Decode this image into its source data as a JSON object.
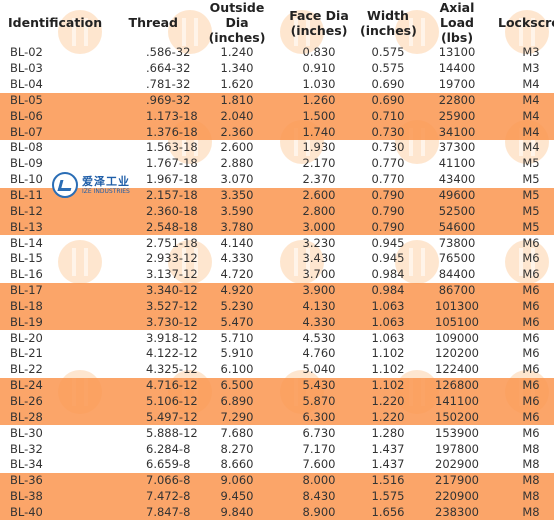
{
  "headers": [
    [
      "Identification"
    ],
    [
      "Thread"
    ],
    [
      "Outside Dia",
      "(inches)"
    ],
    [
      "Face Dia",
      "(inches)"
    ],
    [
      "Width",
      "(inches)"
    ],
    [
      "Axial Load",
      "(lbs)"
    ],
    [
      "Lockscrew"
    ]
  ],
  "colors": {
    "highlight": "#f99a53",
    "watermark": "#fcc48c",
    "logo": "#1f5ea8"
  },
  "logo": {
    "icon": "ize-logo-icon",
    "text_cn": "爱泽工业",
    "text_en": "IZE INDUSTRIES"
  },
  "rows": [
    {
      "id": "BL-02",
      "thread": ".586-32",
      "od": "1.240",
      "fd": "0.830",
      "w": "0.575",
      "load": "13100",
      "ls": "M3",
      "hl": false
    },
    {
      "id": "BL-03",
      "thread": ".664-32",
      "od": "1.340",
      "fd": "0.910",
      "w": "0.575",
      "load": "14400",
      "ls": "M3",
      "hl": false
    },
    {
      "id": "BL-04",
      "thread": ".781-32",
      "od": "1.620",
      "fd": "1.030",
      "w": "0.690",
      "load": "19700",
      "ls": "M4",
      "hl": false
    },
    {
      "id": "BL-05",
      "thread": ".969-32",
      "od": "1.810",
      "fd": "1.260",
      "w": "0.690",
      "load": "22800",
      "ls": "M4",
      "hl": true
    },
    {
      "id": "BL-06",
      "thread": "1.173-18",
      "od": "2.040",
      "fd": "1.500",
      "w": "0.710",
      "load": "25900",
      "ls": "M4",
      "hl": true
    },
    {
      "id": "BL-07",
      "thread": "1.376-18",
      "od": "2.360",
      "fd": "1.740",
      "w": "0.730",
      "load": "34100",
      "ls": "M4",
      "hl": true
    },
    {
      "id": "BL-08",
      "thread": "1.563-18",
      "od": "2.600",
      "fd": "1.930",
      "w": "0.730",
      "load": "37300",
      "ls": "M4",
      "hl": false
    },
    {
      "id": "BL-09",
      "thread": "1.767-18",
      "od": "2.880",
      "fd": "2.170",
      "w": "0.770",
      "load": "41100",
      "ls": "M5",
      "hl": false
    },
    {
      "id": "BL-10",
      "thread": "1.967-18",
      "od": "3.070",
      "fd": "2.370",
      "w": "0.770",
      "load": "43400",
      "ls": "M5",
      "hl": false
    },
    {
      "id": "BL-11",
      "thread": "2.157-18",
      "od": "3.350",
      "fd": "2.600",
      "w": "0.790",
      "load": "49600",
      "ls": "M5",
      "hl": true
    },
    {
      "id": "BL-12",
      "thread": "2.360-18",
      "od": "3.590",
      "fd": "2.800",
      "w": "0.790",
      "load": "52500",
      "ls": "M5",
      "hl": true
    },
    {
      "id": "BL-13",
      "thread": "2.548-18",
      "od": "3.780",
      "fd": "3.000",
      "w": "0.790",
      "load": "54600",
      "ls": "M5",
      "hl": true
    },
    {
      "id": "BL-14",
      "thread": "2.751-18",
      "od": "4.140",
      "fd": "3.230",
      "w": "0.945",
      "load": "73800",
      "ls": "M6",
      "hl": false
    },
    {
      "id": "BL-15",
      "thread": "2.933-12",
      "od": "4.330",
      "fd": "3.430",
      "w": "0.945",
      "load": "76500",
      "ls": "M6",
      "hl": false
    },
    {
      "id": "BL-16",
      "thread": "3.137-12",
      "od": "4.720",
      "fd": "3.700",
      "w": "0.984",
      "load": "84400",
      "ls": "M6",
      "hl": false
    },
    {
      "id": "BL-17",
      "thread": "3.340-12",
      "od": "4.920",
      "fd": "3.900",
      "w": "0.984",
      "load": "86700",
      "ls": "M6",
      "hl": true
    },
    {
      "id": "BL-18",
      "thread": "3.527-12",
      "od": "5.230",
      "fd": "4.130",
      "w": "1.063",
      "load": "101300",
      "ls": "M6",
      "hl": true
    },
    {
      "id": "BL-19",
      "thread": "3.730-12",
      "od": "5.470",
      "fd": "4.330",
      "w": "1.063",
      "load": "105100",
      "ls": "M6",
      "hl": true
    },
    {
      "id": "BL-20",
      "thread": "3.918-12",
      "od": "5.710",
      "fd": "4.530",
      "w": "1.063",
      "load": "109000",
      "ls": "M6",
      "hl": false
    },
    {
      "id": "BL-21",
      "thread": "4.122-12",
      "od": "5.910",
      "fd": "4.760",
      "w": "1.102",
      "load": "120200",
      "ls": "M6",
      "hl": false
    },
    {
      "id": "BL-22",
      "thread": "4.325-12",
      "od": "6.100",
      "fd": "5.040",
      "w": "1.102",
      "load": "122400",
      "ls": "M6",
      "hl": false
    },
    {
      "id": "BL-24",
      "thread": "4.716-12",
      "od": "6.500",
      "fd": "5.430",
      "w": "1.102",
      "load": "126800",
      "ls": "M6",
      "hl": true
    },
    {
      "id": "BL-26",
      "thread": "5.106-12",
      "od": "6.890",
      "fd": "5.870",
      "w": "1.220",
      "load": "141100",
      "ls": "M6",
      "hl": true
    },
    {
      "id": "BL-28",
      "thread": "5.497-12",
      "od": "7.290",
      "fd": "6.300",
      "w": "1.220",
      "load": "150200",
      "ls": "M6",
      "hl": true
    },
    {
      "id": "BL-30",
      "thread": "5.888-12",
      "od": "7.680",
      "fd": "6.730",
      "w": "1.280",
      "load": "153900",
      "ls": "M6",
      "hl": false
    },
    {
      "id": "BL-32",
      "thread": "6.284-8",
      "od": "8.270",
      "fd": "7.170",
      "w": "1.437",
      "load": "197800",
      "ls": "M8",
      "hl": false
    },
    {
      "id": "BL-34",
      "thread": "6.659-8",
      "od": "8.660",
      "fd": "7.600",
      "w": "1.437",
      "load": "202900",
      "ls": "M8",
      "hl": false
    },
    {
      "id": "BL-36",
      "thread": "7.066-8",
      "od": "9.060",
      "fd": "8.000",
      "w": "1.516",
      "load": "217900",
      "ls": "M8",
      "hl": true
    },
    {
      "id": "BL-38",
      "thread": "7.472-8",
      "od": "9.450",
      "fd": "8.430",
      "w": "1.575",
      "load": "220900",
      "ls": "M8",
      "hl": true
    },
    {
      "id": "BL-40",
      "thread": "7.847-8",
      "od": "9.840",
      "fd": "8.900",
      "w": "1.656",
      "load": "238300",
      "ls": "M8",
      "hl": true
    }
  ]
}
